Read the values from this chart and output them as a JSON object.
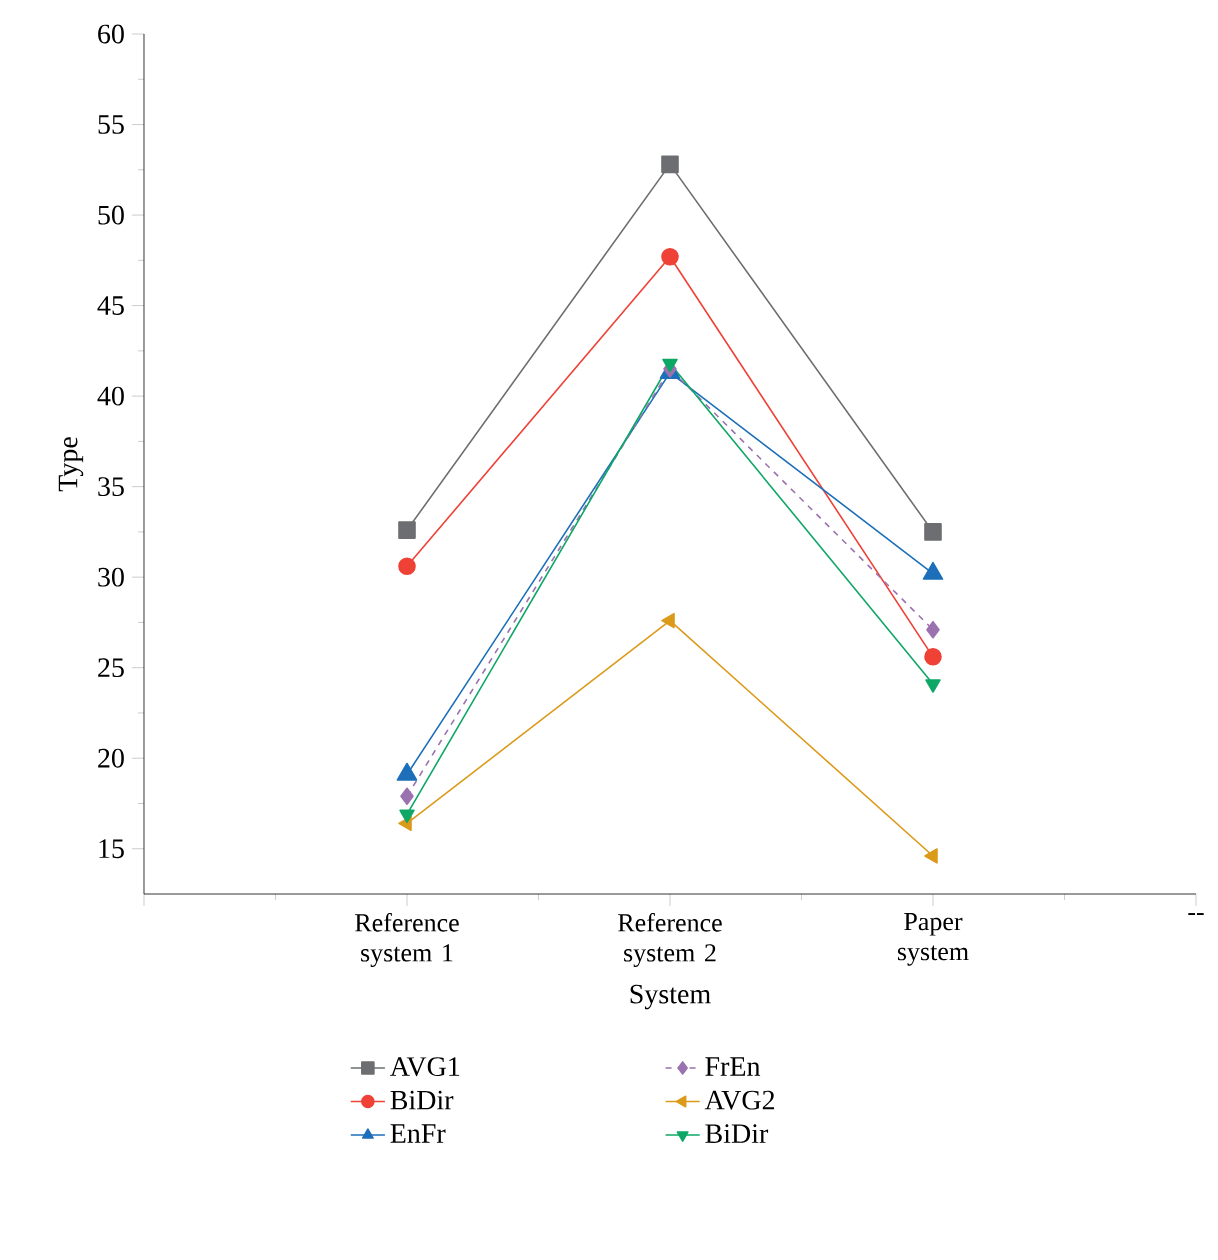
{
  "chart_data": {
    "type": "line",
    "xlabel": "System",
    "ylabel": "Type",
    "categories": [
      null,
      "Reference system 1",
      "Reference system 2",
      "Paper system",
      "--"
    ],
    "ylim": [
      12.5,
      60
    ],
    "yticks": [
      15,
      20,
      25,
      30,
      35,
      40,
      45,
      50,
      55,
      60
    ],
    "legend": "bottom",
    "grid": false,
    "series": [
      {
        "name": "AVG1",
        "color": "#6d6e71",
        "marker": "square",
        "line_style": "solid",
        "values": [
          null,
          32.6,
          52.8,
          32.5,
          null
        ]
      },
      {
        "name": "BiDir",
        "color": "#ef4136",
        "marker": "circle",
        "line_style": "solid",
        "values": [
          null,
          30.6,
          47.7,
          25.6,
          null
        ]
      },
      {
        "name": "EnFr",
        "color": "#1c6fb8",
        "marker": "triangle",
        "line_style": "solid",
        "values": [
          null,
          19.1,
          41.3,
          30.2,
          null
        ]
      },
      {
        "name": "FrEn",
        "color": "#9b72b0",
        "marker": "diamond",
        "line_style": "dashed",
        "values": [
          null,
          17.9,
          41.5,
          27.1,
          null
        ]
      },
      {
        "name": "AVG2",
        "color": "#dc9a1a",
        "marker": "triangle-left",
        "line_style": "solid",
        "values": [
          null,
          16.4,
          27.6,
          14.6,
          null
        ]
      },
      {
        "name": "BiDir",
        "color": "#0ea766",
        "marker": "triangle-down",
        "line_style": "solid",
        "values": [
          null,
          16.9,
          41.8,
          24.1,
          null
        ]
      }
    ]
  }
}
